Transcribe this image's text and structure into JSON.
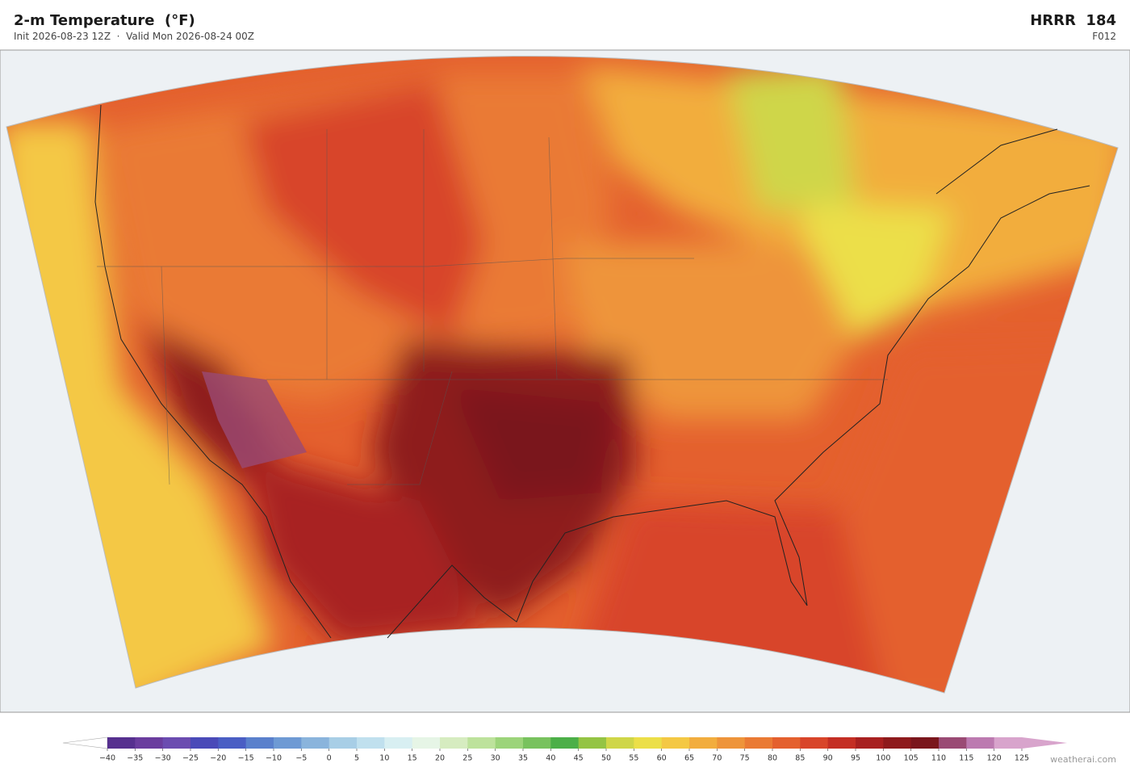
{
  "header": {
    "title": "2-m Temperature  (°F)",
    "subtitle": "Init 2026-08-23 12Z  ·  Valid Mon 2026-08-24 00Z",
    "model": "HRRR  184",
    "forecast_hour": "F012"
  },
  "colorbar": {
    "xlim": [
      -40,
      125
    ],
    "ticks": [
      {
        "value": -40,
        "label": "−40"
      },
      {
        "value": -35,
        "label": "−35"
      },
      {
        "value": -30,
        "label": "−30"
      },
      {
        "value": -25,
        "label": "−25"
      },
      {
        "value": -20,
        "label": "−20"
      },
      {
        "value": -15,
        "label": "−15"
      },
      {
        "value": -10,
        "label": "−10"
      },
      {
        "value": -5,
        "label": "−5"
      },
      0,
      5,
      10,
      15,
      20,
      25,
      30,
      35,
      40,
      45,
      50,
      55,
      60,
      65,
      70,
      75,
      80,
      85,
      90,
      95,
      100,
      105,
      110,
      115,
      120,
      125
    ],
    "colors": [
      "#56308f",
      "#6a3d9e",
      "#6b4cb0",
      "#4a4ab8",
      "#4a5ec4",
      "#5a80cc",
      "#6e9ad4",
      "#8ab4dc",
      "#a8cee6",
      "#c0e0ee",
      "#d8eff2",
      "#e6f5e6",
      "#d6ecc0",
      "#bde29c",
      "#9cd47a",
      "#78c25e",
      "#4caf48",
      "#94c444",
      "#cfd648",
      "#ecdf48",
      "#f4c844",
      "#f2ad3e",
      "#ee943a",
      "#ea7a34",
      "#e4602e",
      "#d8452a",
      "#c42e24",
      "#a82020",
      "#8e1a1c",
      "#7a161c",
      "#9a4a74",
      "#bc7ab0",
      "#d8a4cc"
    ],
    "under_color": "#ffffff",
    "over_color": "#d8a4cc"
  },
  "watermark": "weatherai.com"
}
